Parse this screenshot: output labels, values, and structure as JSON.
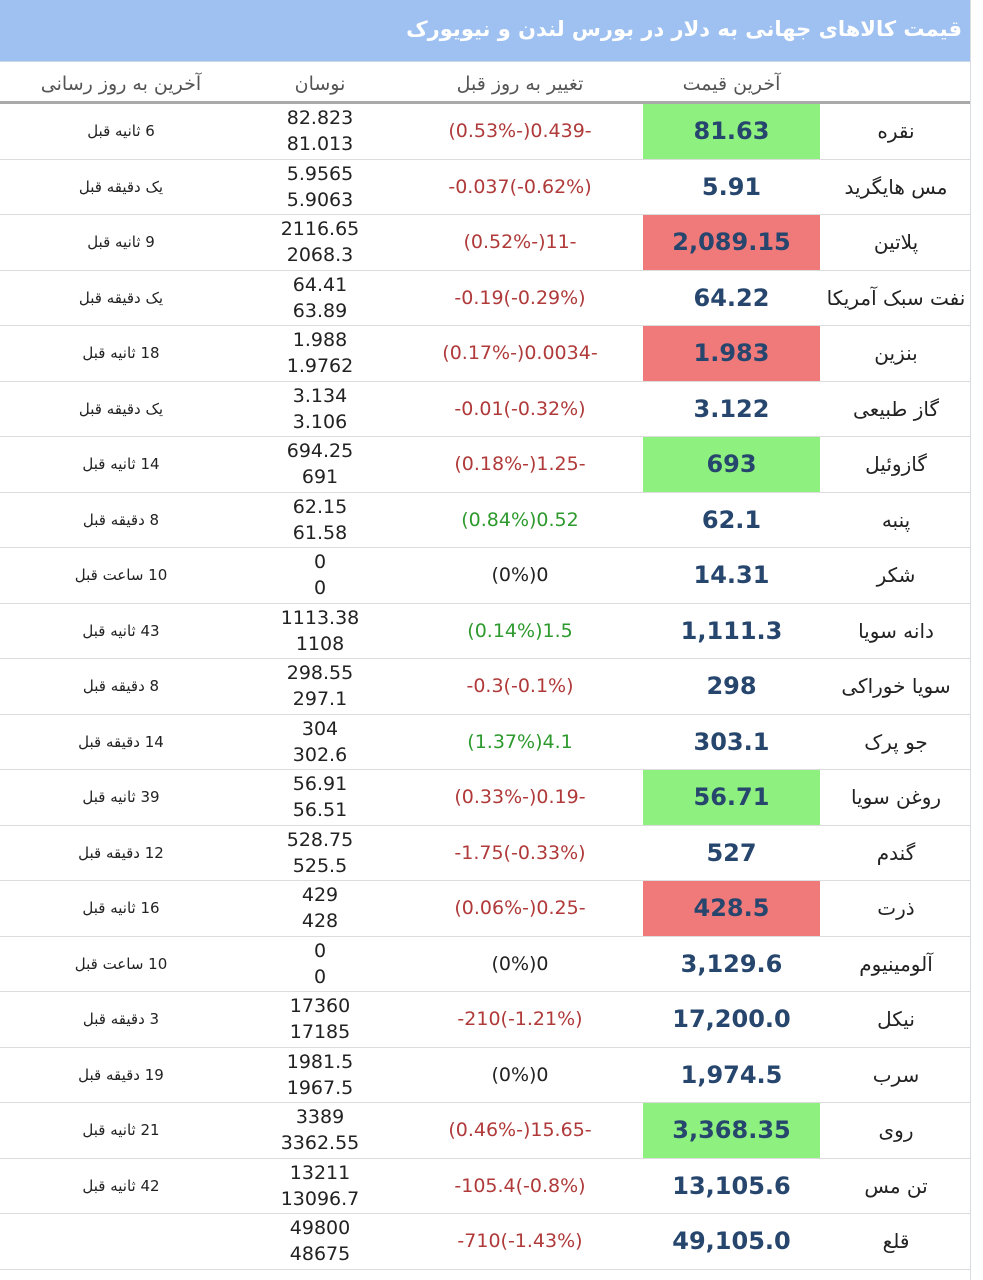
{
  "title": "قیمت کالاهای جهانی به دلار در بورس لندن و نیویورک",
  "headers": {
    "price": "آخرین قیمت",
    "change": "تغییر به روز قبل",
    "range": "نوسان",
    "updated": "آخرین به روز رسانی"
  },
  "colors": {
    "title_bg": "#9ec1f1",
    "up_highlight": "#8ef07f",
    "down_highlight": "#f07a7a",
    "negative_text": "#b03a3a",
    "positive_text": "#2e9a2e",
    "price_text": "#27466e"
  },
  "rows": [
    {
      "name": "نقره",
      "price": "81.63",
      "highlight": "up",
      "change": "(0.53%-)0.439-",
      "trend": "neg",
      "high": "82.823",
      "low": "81.013",
      "updated": "6 ثانیه قبل"
    },
    {
      "name": "مس هایگرید",
      "price": "5.91",
      "highlight": "",
      "change": "-0.037(-0.62%)",
      "trend": "neg",
      "high": "5.9565",
      "low": "5.9063",
      "updated": "یک دقیقه قبل"
    },
    {
      "name": "پلاتین",
      "price": "2,089.15",
      "highlight": "down",
      "change": "(0.52%-)11-",
      "trend": "neg",
      "high": "2116.65",
      "low": "2068.3",
      "updated": "9 ثانیه قبل"
    },
    {
      "name": "نفت سبک آمریکا",
      "price": "64.22",
      "highlight": "",
      "change": "-0.19(-0.29%)",
      "trend": "neg",
      "high": "64.41",
      "low": "63.89",
      "updated": "یک دقیقه قبل"
    },
    {
      "name": "بنزین",
      "price": "1.983",
      "highlight": "down",
      "change": "(0.17%-)0.0034-",
      "trend": "neg",
      "high": "1.988",
      "low": "1.9762",
      "updated": "18 ثانیه قبل"
    },
    {
      "name": "گاز طبیعی",
      "price": "3.122",
      "highlight": "",
      "change": "-0.01(-0.32%)",
      "trend": "neg",
      "high": "3.134",
      "low": "3.106",
      "updated": "یک دقیقه قبل"
    },
    {
      "name": "گازوئیل",
      "price": "693",
      "highlight": "up",
      "change": "(0.18%-)1.25-",
      "trend": "neg",
      "high": "694.25",
      "low": "691",
      "updated": "14 ثانیه قبل"
    },
    {
      "name": "پنبه",
      "price": "62.1",
      "highlight": "",
      "change": "(0.84%)0.52",
      "trend": "pos",
      "high": "62.15",
      "low": "61.58",
      "updated": "8 دقیقه قبل"
    },
    {
      "name": "شکر",
      "price": "14.31",
      "highlight": "",
      "change": "(0%)0",
      "trend": "neu",
      "high": "0",
      "low": "0",
      "updated": "10 ساعت قبل"
    },
    {
      "name": "دانه سویا",
      "price": "1,111.3",
      "highlight": "",
      "change": "(0.14%)1.5",
      "trend": "pos",
      "high": "1113.38",
      "low": "1108",
      "updated": "43 ثانیه قبل"
    },
    {
      "name": "سویا خوراکی",
      "price": "298",
      "highlight": "",
      "change": "-0.3(-0.1%)",
      "trend": "neg",
      "high": "298.55",
      "low": "297.1",
      "updated": "8 دقیقه قبل"
    },
    {
      "name": "جو پرک",
      "price": "303.1",
      "highlight": "",
      "change": "(1.37%)4.1",
      "trend": "pos",
      "high": "304",
      "low": "302.6",
      "updated": "14 دقیقه قبل"
    },
    {
      "name": "روغن سویا",
      "price": "56.71",
      "highlight": "up",
      "change": "(0.33%-)0.19-",
      "trend": "neg",
      "high": "56.91",
      "low": "56.51",
      "updated": "39 ثانیه قبل"
    },
    {
      "name": "گندم",
      "price": "527",
      "highlight": "",
      "change": "-1.75(-0.33%)",
      "trend": "neg",
      "high": "528.75",
      "low": "525.5",
      "updated": "12 دقیقه قبل"
    },
    {
      "name": "ذرت",
      "price": "428.5",
      "highlight": "down",
      "change": "(0.06%-)0.25-",
      "trend": "neg",
      "high": "429",
      "low": "428",
      "updated": "16 ثانیه قبل"
    },
    {
      "name": "آلومینیوم",
      "price": "3,129.6",
      "highlight": "",
      "change": "(0%)0",
      "trend": "neu",
      "high": "0",
      "low": "0",
      "updated": "10 ساعت قبل"
    },
    {
      "name": "نیکل",
      "price": "17,200.0",
      "highlight": "",
      "change": "-210(-1.21%)",
      "trend": "neg",
      "high": "17360",
      "low": "17185",
      "updated": "3 دقیقه قبل"
    },
    {
      "name": "سرب",
      "price": "1,974.5",
      "highlight": "",
      "change": "(0%)0",
      "trend": "neu",
      "high": "1981.5",
      "low": "1967.5",
      "updated": "19 دقیقه قبل"
    },
    {
      "name": "روی",
      "price": "3,368.35",
      "highlight": "up",
      "change": "(0.46%-)15.65-",
      "trend": "neg",
      "high": "3389",
      "low": "3362.55",
      "updated": "21 ثانیه قبل"
    },
    {
      "name": "تن مس",
      "price": "13,105.6",
      "highlight": "",
      "change": "-105.4(-0.8%)",
      "trend": "neg",
      "high": "13211",
      "low": "13096.7",
      "updated": "42 ثانیه قبل"
    },
    {
      "name": "قلع",
      "price": "49,105.0",
      "highlight": "",
      "change": "-710(-1.43%)",
      "trend": "neg",
      "high": "49800",
      "low": "48675",
      "updated": ""
    }
  ]
}
